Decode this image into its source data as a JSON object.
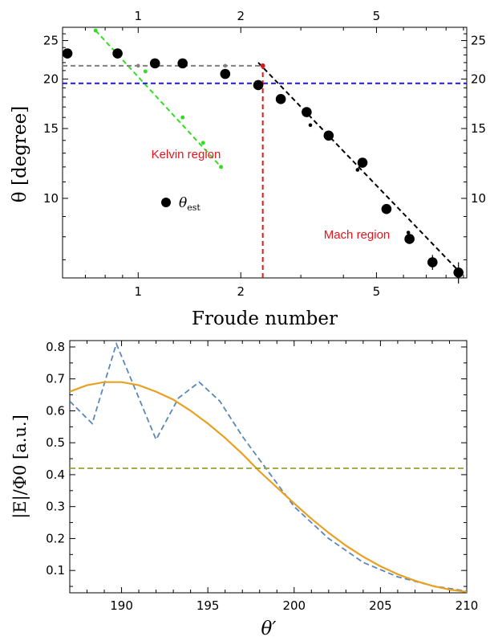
{
  "chart_data": [
    {
      "type": "scatter",
      "xlabel": "Froude number",
      "ylabel": "θ [degree]",
      "xscale": "log",
      "yscale": "log",
      "xlim": [
        0.6,
        9.2
      ],
      "ylim": [
        6.3,
        27
      ],
      "x_ticks": [
        "1",
        "2",
        "5"
      ],
      "x_ticks_top": [
        "1",
        "2",
        "5"
      ],
      "y_ticks": [
        "25",
        "20",
        "15",
        "10"
      ],
      "y_ticks_right": [
        "25",
        "20",
        "15",
        "10"
      ],
      "grid": false,
      "annotations": [
        "Kelvin region",
        "Mach region"
      ],
      "legend": {
        "label_main": "θ",
        "label_sub": "est",
        "position": "center-left"
      },
      "colors": {
        "points": "#000000",
        "kelvin_line": "#33dd22",
        "gray_line": "#808080",
        "blue_line": "#1a1adf",
        "red_line": "#dd1a1a",
        "mach_line": "#000000",
        "region_text": "#e8141b"
      },
      "series": [
        {
          "name": "θ_est",
          "x": [
            0.62,
            0.87,
            1.12,
            1.35,
            1.8,
            2.25,
            2.62,
            3.12,
            3.62,
            4.55,
            5.35,
            6.25,
            7.3,
            8.7
          ],
          "y": [
            23.2,
            23.2,
            21.9,
            21.9,
            20.6,
            19.3,
            17.8,
            16.5,
            14.4,
            12.3,
            9.4,
            7.9,
            6.9,
            6.5
          ],
          "yerr": [
            0.3,
            0.2,
            0.2,
            0.2,
            0.2,
            0.2,
            0.2,
            0.3,
            0.3,
            0.2,
            0.2,
            0.2,
            0.3,
            0.4
          ]
        }
      ],
      "lines": [
        {
          "style": "dashed",
          "color_key": "kelvin_line",
          "x": [
            0.75,
            1.75
          ],
          "y": [
            26.5,
            12.0
          ]
        },
        {
          "style": "dashed",
          "color_key": "gray_line",
          "x": [
            0.6,
            2.32
          ],
          "y": [
            21.6,
            21.6
          ]
        },
        {
          "style": "dashed",
          "color_key": "blue_line",
          "x": [
            0.6,
            9.2
          ],
          "y": [
            19.5,
            19.5
          ]
        },
        {
          "style": "dashed",
          "color_key": "red_line",
          "x": [
            2.32,
            2.32
          ],
          "y": [
            6.3,
            21.6
          ]
        },
        {
          "style": "dashed",
          "color_key": "mach_line",
          "x": [
            2.25,
            8.8
          ],
          "y": [
            22.0,
            6.5
          ]
        }
      ]
    },
    {
      "type": "line",
      "xlabel": "θ′",
      "ylabel": "|E|/Φ0 [a.u.]",
      "xlim": [
        187,
        210
      ],
      "ylim": [
        0.03,
        0.82
      ],
      "x_ticks": [
        "190",
        "195",
        "200",
        "205",
        "210"
      ],
      "y_ticks": [
        "0.8",
        "0.7",
        "0.6",
        "0.5",
        "0.4",
        "0.3",
        "0.2",
        "0.1"
      ],
      "grid": false,
      "colors": {
        "dashed": "#5b87b8",
        "solid": "#e8a020",
        "flat": "#9aa030"
      },
      "series": [
        {
          "style": "dashed",
          "x": [
            187,
            188.3,
            189.7,
            192.0,
            193.3,
            194.5,
            195.7,
            197.0,
            198.5,
            200.0,
            202.0,
            204.0,
            206.0,
            208.0,
            210.0
          ],
          "y": [
            0.63,
            0.56,
            0.81,
            0.51,
            0.64,
            0.69,
            0.63,
            0.52,
            0.41,
            0.3,
            0.2,
            0.125,
            0.08,
            0.052,
            0.035
          ]
        },
        {
          "style": "solid",
          "x": [
            187,
            188,
            189,
            190,
            191,
            192,
            193,
            194,
            195,
            196,
            197,
            198,
            199,
            200,
            201,
            202,
            203,
            204,
            205,
            206,
            207,
            208,
            209,
            210
          ],
          "y": [
            0.66,
            0.68,
            0.69,
            0.69,
            0.68,
            0.66,
            0.635,
            0.6,
            0.56,
            0.515,
            0.465,
            0.41,
            0.36,
            0.31,
            0.262,
            0.218,
            0.178,
            0.143,
            0.113,
            0.088,
            0.068,
            0.052,
            0.04,
            0.033
          ]
        },
        {
          "style": "dashed",
          "x": [
            187,
            210
          ],
          "y": [
            0.42,
            0.42
          ]
        }
      ]
    }
  ]
}
